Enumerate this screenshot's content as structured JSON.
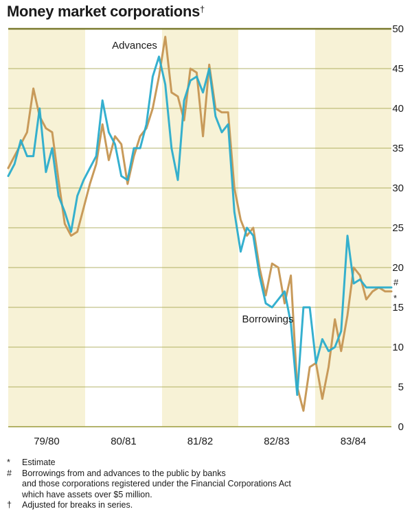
{
  "title": "Money market corporations",
  "title_mark": "†",
  "colors": {
    "band": "#f7f2d6",
    "axis": "#7a7a2e",
    "grid": "#9a9a3a",
    "advances": "#c89a5a",
    "borrowings": "#2aaccc"
  },
  "chart_data": {
    "type": "line",
    "title": "Money market corporations",
    "x_periods": [
      "79/80",
      "80/81",
      "81/82",
      "82/83",
      "83/84"
    ],
    "x_unit": "month index from July 1979 (0 = Jul 1979)",
    "yaxis": {
      "side": "right",
      "ticks": [
        0,
        5,
        10,
        15,
        20,
        25,
        30,
        35,
        40,
        45,
        50
      ],
      "ylim": [
        0,
        50
      ]
    },
    "xlim": [
      0,
      61
    ],
    "grid": "horizontal",
    "shaded_periods": [
      "79/80",
      "81/82",
      "83/84"
    ],
    "series": [
      {
        "name": "Advances",
        "x": [
          0,
          1,
          2,
          3,
          4,
          5,
          6,
          7,
          8,
          9,
          10,
          11,
          12,
          13,
          14,
          15,
          16,
          17,
          18,
          19,
          20,
          21,
          22,
          23,
          24,
          25,
          26,
          27,
          28,
          29,
          30,
          31,
          32,
          33,
          34,
          35,
          36,
          37,
          38,
          39,
          40,
          41,
          42,
          43,
          44,
          45,
          46,
          47,
          48,
          49,
          50,
          51,
          52,
          53,
          54,
          55,
          56,
          57,
          58,
          59,
          60,
          61
        ],
        "y": [
          32.5,
          34,
          35.5,
          37,
          42.5,
          39,
          37.5,
          37,
          31,
          25.5,
          24,
          24.5,
          27.5,
          30.5,
          33,
          38,
          33.5,
          36.5,
          35.5,
          30.5,
          34,
          36.5,
          37.5,
          40,
          44,
          49,
          42,
          41.5,
          38.5,
          45,
          44.5,
          36.5,
          45.5,
          40,
          39.5,
          39.5,
          30,
          26,
          24,
          25,
          20,
          16.5,
          20.5,
          20,
          15.5,
          19,
          5,
          2,
          7.5,
          8,
          3.5,
          7.5,
          13.5,
          9.5,
          14,
          20,
          19,
          16,
          17,
          17.5,
          17,
          17
        ],
        "end_marker": "*"
      },
      {
        "name": "Borrowings",
        "x": [
          0,
          1,
          2,
          3,
          4,
          5,
          6,
          7,
          8,
          9,
          10,
          11,
          12,
          13,
          14,
          15,
          16,
          17,
          18,
          19,
          20,
          21,
          22,
          23,
          24,
          25,
          26,
          27,
          28,
          29,
          30,
          31,
          32,
          33,
          34,
          35,
          36,
          37,
          38,
          39,
          40,
          41,
          42,
          43,
          44,
          45,
          46,
          47,
          48,
          49,
          50,
          51,
          52,
          53,
          54,
          55,
          56,
          57,
          58,
          59,
          60,
          61
        ],
        "y": [
          31.5,
          33,
          36,
          34,
          34,
          40,
          32,
          35,
          29,
          27,
          24.5,
          29,
          31,
          32.5,
          34,
          41,
          37,
          35.5,
          31.5,
          31,
          35,
          35,
          38,
          44,
          46.5,
          43,
          35,
          31,
          41,
          43.5,
          44,
          42,
          45,
          39,
          37,
          38,
          27,
          22,
          25,
          24,
          19,
          15.5,
          15,
          16,
          17,
          13,
          4,
          15,
          15,
          8,
          11,
          9.5,
          10,
          12,
          24,
          18,
          18.5,
          17.5,
          17.5,
          17.5,
          17.5,
          17.5
        ],
        "end_marker": "#"
      }
    ],
    "annotations": [
      "Advances",
      "Borrowings",
      "*",
      "#"
    ]
  },
  "notes": [
    {
      "symbol": "*",
      "text": "Estimate"
    },
    {
      "symbol": "#",
      "text": "Borrowings from and advances to the public by banks\nand those corporations registered under the Financial Corporations Act\nwhich have assets over $5 million."
    },
    {
      "symbol": "†",
      "text": "Adjusted for breaks in series."
    }
  ]
}
